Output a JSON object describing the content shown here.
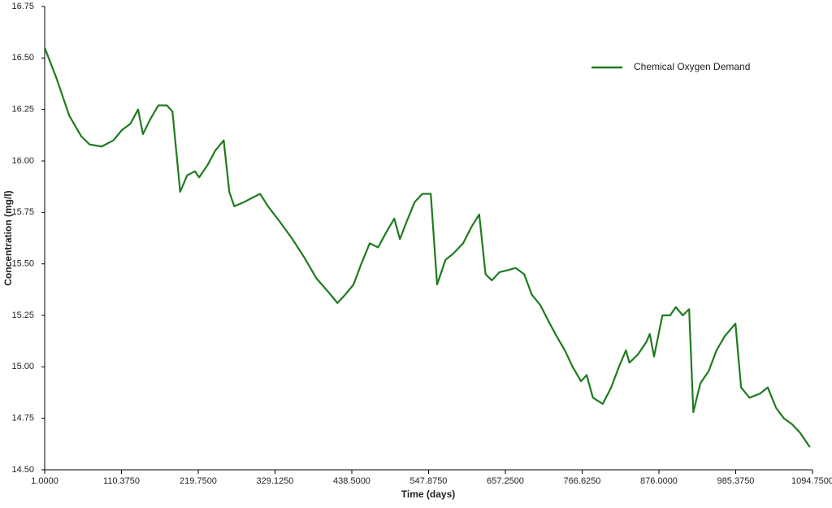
{
  "chart_data": {
    "type": "line",
    "x_label": "Time (days)",
    "y_label": "Concentration (mg/l)",
    "xlim": [
      1,
      1094.75
    ],
    "ylim": [
      14.5,
      16.75
    ],
    "xticks": [
      {
        "value": 1,
        "label": "1.0000"
      },
      {
        "value": 110.375,
        "label": "110.3750"
      },
      {
        "value": 219.75,
        "label": "219.7500"
      },
      {
        "value": 329.125,
        "label": "329.1250"
      },
      {
        "value": 438.5,
        "label": "438.5000"
      },
      {
        "value": 547.875,
        "label": "547.8750"
      },
      {
        "value": 657.25,
        "label": "657.2500"
      },
      {
        "value": 766.625,
        "label": "766.6250"
      },
      {
        "value": 876,
        "label": "876.0000"
      },
      {
        "value": 985.375,
        "label": "985.3750"
      },
      {
        "value": 1094.75,
        "label": "1094.7500"
      }
    ],
    "yticks": [
      {
        "value": 14.5,
        "label": "14.50"
      },
      {
        "value": 14.75,
        "label": "14.75"
      },
      {
        "value": 15,
        "label": "15.00"
      },
      {
        "value": 15.25,
        "label": "15.25"
      },
      {
        "value": 15.5,
        "label": "15.50"
      },
      {
        "value": 15.75,
        "label": "15.75"
      },
      {
        "value": 16,
        "label": "16.00"
      },
      {
        "value": 16.25,
        "label": "16.25"
      },
      {
        "value": 16.5,
        "label": "16.50"
      },
      {
        "value": 16.75,
        "label": "16.75"
      }
    ],
    "legend": "upper right",
    "x": [
      1,
      18,
      36,
      53,
      65,
      82,
      99,
      111,
      123,
      134,
      141,
      151,
      163,
      175,
      183,
      194,
      204,
      215,
      221,
      233,
      244,
      256,
      264,
      271,
      285,
      296,
      308,
      319,
      337,
      354,
      371,
      388,
      406,
      418,
      429,
      441,
      452,
      464,
      476,
      487,
      499,
      507,
      516,
      528,
      539,
      551,
      560,
      572,
      583,
      597,
      609,
      620,
      629,
      638,
      649,
      661,
      672,
      684,
      695,
      707,
      719,
      730,
      742,
      753,
      765,
      773,
      782,
      796,
      808,
      819,
      829,
      834,
      846,
      858,
      863,
      869,
      881,
      892,
      900,
      910,
      919,
      925,
      935,
      947,
      958,
      970,
      985,
      993,
      1005,
      1020,
      1031,
      1043,
      1054,
      1066,
      1077,
      1091
    ],
    "series": [
      {
        "name": "Chemical Oxygen Demand",
        "color": "#1e7b1e",
        "values": [
          16.55,
          16.4,
          16.22,
          16.12,
          16.08,
          16.07,
          16.1,
          16.15,
          16.18,
          16.25,
          16.13,
          16.2,
          16.27,
          16.27,
          16.24,
          15.85,
          15.93,
          15.95,
          15.92,
          15.98,
          16.05,
          16.1,
          15.85,
          15.78,
          15.8,
          15.82,
          15.84,
          15.78,
          15.7,
          15.62,
          15.53,
          15.43,
          15.36,
          15.31,
          15.35,
          15.4,
          15.5,
          15.6,
          15.58,
          15.65,
          15.72,
          15.62,
          15.7,
          15.8,
          15.84,
          15.84,
          15.4,
          15.52,
          15.55,
          15.6,
          15.68,
          15.74,
          15.45,
          15.42,
          15.46,
          15.47,
          15.48,
          15.45,
          15.35,
          15.3,
          15.22,
          15.15,
          15.08,
          15.0,
          14.93,
          14.96,
          14.85,
          14.82,
          14.9,
          15.0,
          15.08,
          15.02,
          15.06,
          15.12,
          15.16,
          15.05,
          15.25,
          15.25,
          15.29,
          15.25,
          15.28,
          14.78,
          14.92,
          14.98,
          15.08,
          15.15,
          15.21,
          14.9,
          14.85,
          14.87,
          14.9,
          14.8,
          14.75,
          14.72,
          14.68,
          14.61
        ]
      }
    ]
  }
}
